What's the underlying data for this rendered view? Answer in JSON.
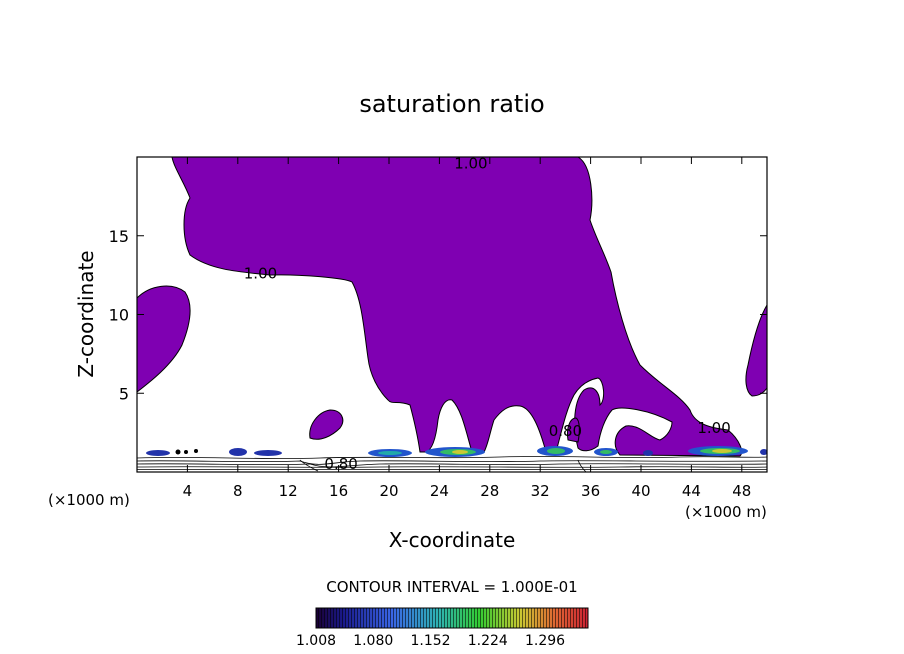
{
  "chart_data": {
    "type": "contour",
    "title": "saturation ratio",
    "xlabel": "X-coordinate",
    "ylabel": "Z-coordinate",
    "x_unit": "(×1000 m)",
    "x_unit_right": "(×1000 m)",
    "xlim": [
      0,
      50
    ],
    "ylim": [
      0,
      20
    ],
    "x_ticks": [
      4,
      8,
      12,
      16,
      20,
      24,
      28,
      32,
      36,
      40,
      44,
      48
    ],
    "y_ticks": [
      5,
      10,
      15
    ],
    "contour_labels": [
      {
        "text": "1.00",
        "x": 26.5,
        "y": 19.6
      },
      {
        "text": "1.00",
        "x": 9.8,
        "y": 12.6
      },
      {
        "text": "1.00",
        "x": 45.8,
        "y": 2.8
      },
      {
        "text": "0.80",
        "x": 16.2,
        "y": 0.5
      },
      {
        "text": "0.80",
        "x": 34.0,
        "y": 2.6
      }
    ],
    "contour_interval_text": "CONTOUR INTERVAL = 1.000E-01",
    "colorbar": {
      "min": 1.008,
      "max": 1.35,
      "tick_labels": [
        "1.008",
        "1.080",
        "1.152",
        "1.224",
        "1.296"
      ]
    },
    "colors": {
      "saturated_fill": "#7f00b2",
      "background": "#ffffff",
      "axis": "#000000"
    }
  }
}
